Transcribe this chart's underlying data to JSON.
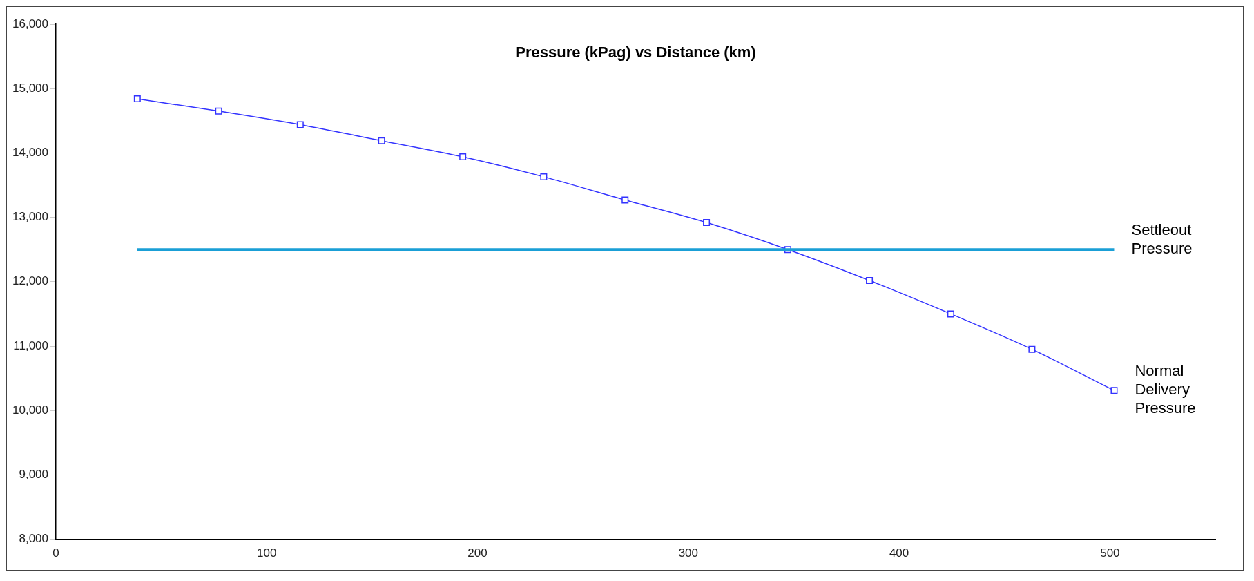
{
  "chart_data": {
    "type": "line",
    "title": "Pressure (kPag) vs Distance (km)",
    "x": [
      38.6,
      77.2,
      115.9,
      154.5,
      193,
      231.4,
      270,
      308.6,
      347.2,
      385.9,
      424.5,
      463,
      502
    ],
    "series": [
      {
        "color": "#3333ff",
        "values": [
          14840,
          14650,
          14440,
          14190,
          13940,
          13630,
          13270,
          12920,
          12500,
          12020,
          11500,
          10950,
          10310
        ]
      }
    ],
    "xlim": [
      0,
      550
    ],
    "ylim": [
      8000,
      16000
    ],
    "xticks": [
      0,
      100,
      200,
      300,
      400,
      500
    ],
    "yticks": [
      {
        "value": 8000,
        "label": "8,000"
      },
      {
        "value": 9000,
        "label": "9,000"
      },
      {
        "value": 10000,
        "label": "10,000"
      },
      {
        "value": 11000,
        "label": "11,000"
      },
      {
        "value": 12000,
        "label": "12,000"
      },
      {
        "value": 13000,
        "label": "13,000"
      },
      {
        "value": 14000,
        "label": "14,000"
      },
      {
        "value": 15000,
        "label": "15,000"
      },
      {
        "value": 16000,
        "label": "16,000"
      }
    ],
    "ref_lines": [
      {
        "axis": "y",
        "value": 12500,
        "label": "Settleout Pressure",
        "color": "#1a9fd6"
      }
    ],
    "annotations": [
      {
        "text": "Normal Delivery Pressure",
        "x": 502,
        "y": 10310
      }
    ],
    "marker": "square",
    "line_style": "solid",
    "grid": false,
    "legend": false
  }
}
